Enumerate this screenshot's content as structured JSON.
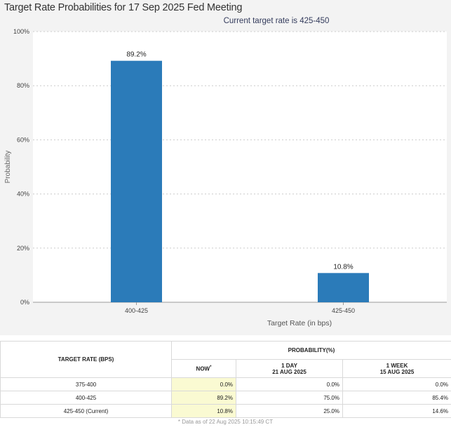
{
  "chart_data": {
    "type": "bar",
    "title": "Target Rate Probabilities for 17 Sep 2025 Fed Meeting",
    "subtitle": "Current target rate is 425-450",
    "xlabel": "Target Rate (in bps)",
    "ylabel": "Probability",
    "categories": [
      "400-425",
      "425-450"
    ],
    "values": [
      89.2,
      10.8
    ],
    "data_labels": [
      "89.2%",
      "10.8%"
    ],
    "ylim": [
      0,
      100
    ],
    "yticks": [
      "0%",
      "20%",
      "40%",
      "60%",
      "80%",
      "100%"
    ],
    "grid": true,
    "bar_color": "#2b7bb9"
  },
  "table": {
    "rate_header": "TARGET RATE (BPS)",
    "prob_header": "PROBABILITY(%)",
    "columns": [
      {
        "line1": "NOW",
        "line2": ""
      },
      {
        "line1": "1 DAY",
        "line2": "21 AUG 2025"
      },
      {
        "line1": "1 WEEK",
        "line2": "15 AUG 2025"
      }
    ],
    "rows": [
      {
        "rate": "375-400",
        "now": "0.0%",
        "day": "0.0%",
        "week": "0.0%"
      },
      {
        "rate": "400-425",
        "now": "89.2%",
        "day": "75.0%",
        "week": "85.4%"
      },
      {
        "rate": "425-450 (Current)",
        "now": "10.8%",
        "day": "25.0%",
        "week": "14.6%"
      }
    ],
    "now_marker": "*",
    "footnote": "* Data as of 22 Aug 2025 10:15:49 CT"
  }
}
